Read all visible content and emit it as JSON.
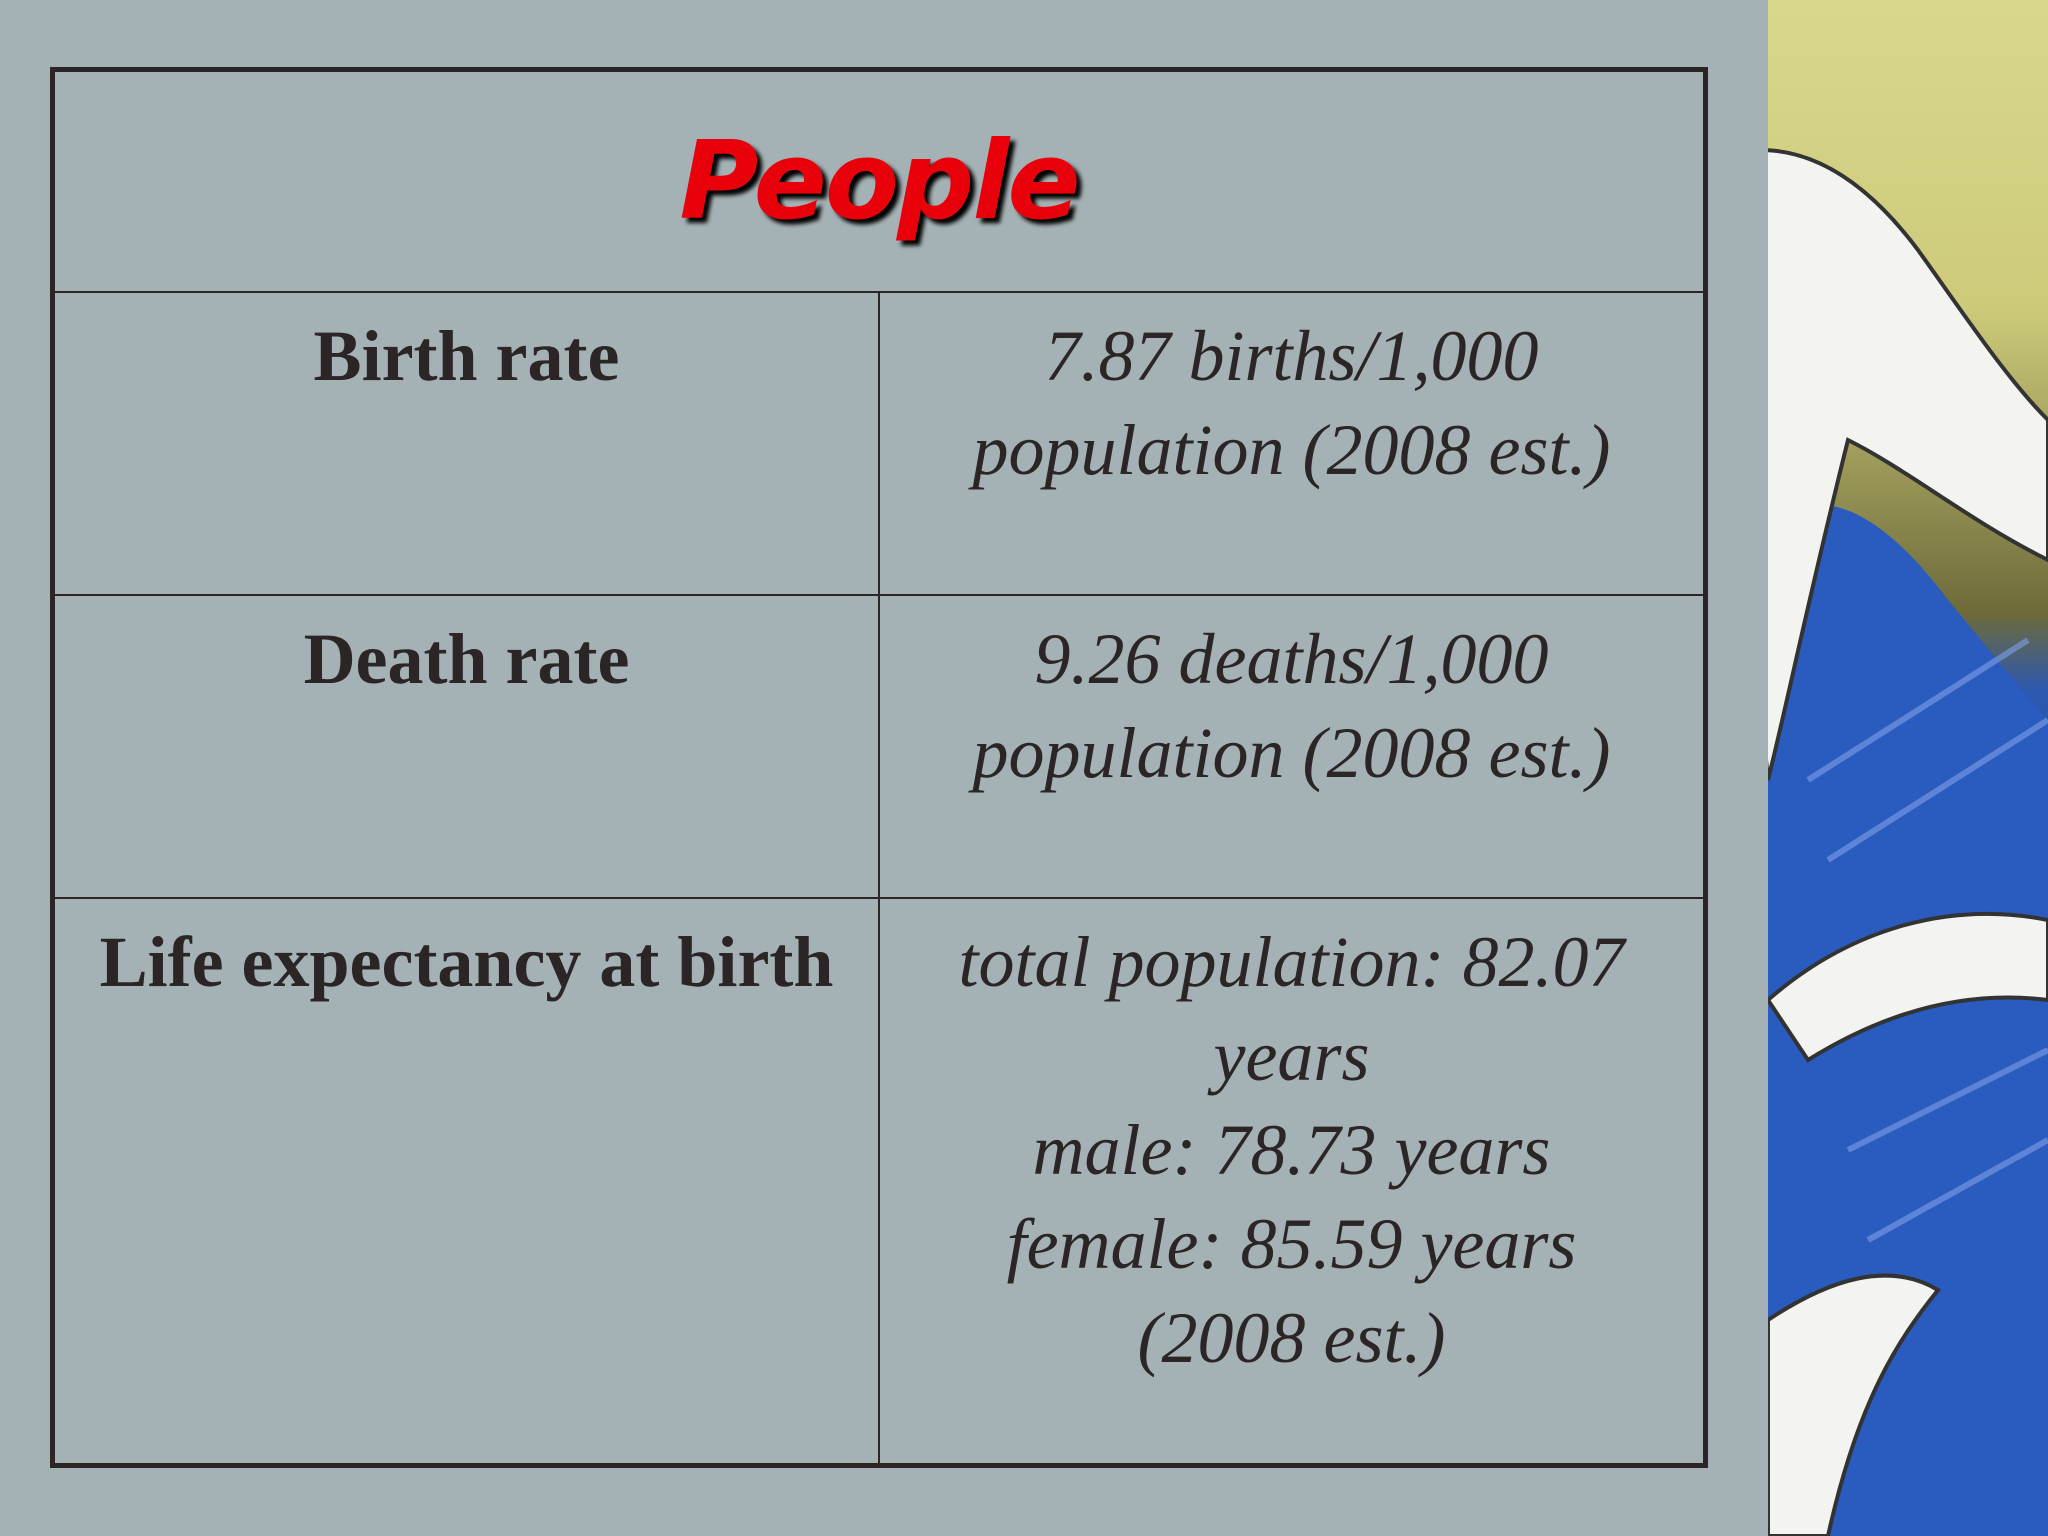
{
  "slide": {
    "title": "People",
    "rows": [
      {
        "label": "Birth rate",
        "value": [
          "7.87 births/1,000 population (2008 est.)"
        ]
      },
      {
        "label": "Death rate",
        "value": [
          "9.26 deaths/1,000 population (2008 est.)"
        ]
      },
      {
        "label": "Life expectancy at birth",
        "value": [
          "total population: 82.07 years",
          "male: 78.73 years",
          "female: 85.59 years",
          "(2008 est.)"
        ]
      }
    ]
  }
}
